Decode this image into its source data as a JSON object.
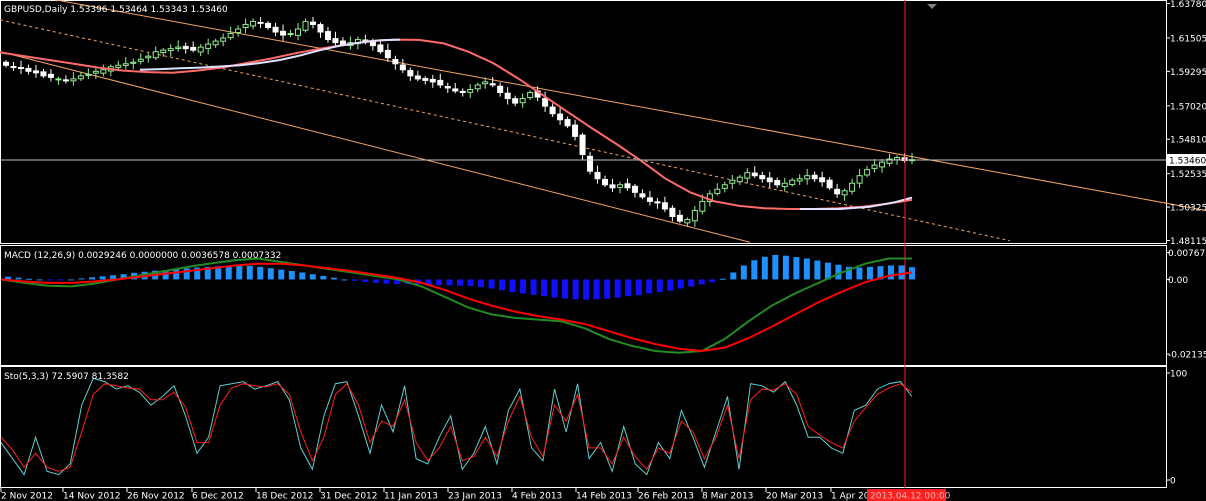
{
  "title": "GBPUSD,Daily  1.53396 1.53464 1.53343 1.53460",
  "macd_label": "MACD  (12,26,9) 0.0029246 0.0000000 0.0036578 0.0007332",
  "sto_label": "Sto(5,3,3) 72.5907 81.3582",
  "current_price_tag": "1.53460",
  "crosshair_time_tag": "2013.04.12 00:00",
  "colors": {
    "background": "#000000",
    "bull_candle": "#90ee90",
    "bear_candle": "#ffffff",
    "ma_red": "#ff6a6a",
    "ma_white": "#e0e0ff",
    "channel": "#f4a460",
    "crosshair": "#ff2020",
    "macd_hist_pos": "#1e90ff",
    "macd_hist_neg": "#1010ff",
    "macd_main": "#228b22",
    "macd_signal": "#ff0000",
    "sto_main": "#5fd0d0",
    "sto_signal": "#ff2020"
  },
  "chart_data": [
    {
      "type": "candlestick",
      "title": "GBPUSD,Daily",
      "y_ticks": [
        "1.63780",
        "1.61505",
        "1.59295",
        "1.57020",
        "1.54810",
        "1.52535",
        "1.50325",
        "1.48115"
      ],
      "ylim": [
        1.4795,
        1.6395
      ],
      "x_tick_labels": [
        "2 Nov 2012",
        "14 Nov 2012",
        "26 Nov 2012",
        "6 Dec 2012",
        "18 Dec 2012",
        "31 Dec 2012",
        "11 Jan 2013",
        "23 Jan 2013",
        "4 Feb 2013",
        "14 Feb 2013",
        "26 Feb 2013",
        "8 Mar 2013",
        "20 Mar 2013",
        "1 Apr 2013"
      ],
      "last_ohlc": {
        "open": 1.53396,
        "high": 1.53464,
        "low": 1.53343,
        "close": 1.5346
      },
      "close_path": [
        1.597,
        1.596,
        1.595,
        1.593,
        1.592,
        1.59,
        1.589,
        1.588,
        1.587,
        1.588,
        1.59,
        1.591,
        1.593,
        1.594,
        1.596,
        1.597,
        1.598,
        1.599,
        1.601,
        1.603,
        1.606,
        1.607,
        1.608,
        1.609,
        1.608,
        1.607,
        1.609,
        1.611,
        1.613,
        1.615,
        1.618,
        1.621,
        1.624,
        1.626,
        1.625,
        1.622,
        1.619,
        1.617,
        1.618,
        1.621,
        1.626,
        1.624,
        1.619,
        1.614,
        1.612,
        1.611,
        1.612,
        1.614,
        1.613,
        1.61,
        1.606,
        1.602,
        1.598,
        1.594,
        1.59,
        1.588,
        1.587,
        1.586,
        1.584,
        1.582,
        1.58,
        1.579,
        1.581,
        1.584,
        1.586,
        1.584,
        1.579,
        1.575,
        1.572,
        1.575,
        1.579,
        1.576,
        1.57,
        1.565,
        1.561,
        1.557,
        1.55,
        1.538,
        1.527,
        1.522,
        1.518,
        1.516,
        1.518,
        1.516,
        1.513,
        1.51,
        1.507,
        1.506,
        1.502,
        1.497,
        1.494,
        1.495,
        1.501,
        1.507,
        1.512,
        1.515,
        1.518,
        1.521,
        1.523,
        1.526,
        1.524,
        1.522,
        1.52,
        1.518,
        1.519,
        1.521,
        1.522,
        1.524,
        1.522,
        1.52,
        1.516,
        1.512,
        1.514,
        1.519,
        1.524,
        1.528,
        1.531,
        1.533,
        1.535,
        1.536,
        1.534,
        1.5346
      ],
      "ma_red": [
        1.6055,
        1.603,
        1.6005,
        1.598,
        1.5955,
        1.5935,
        1.5925,
        1.592,
        1.5935,
        1.5955,
        1.5985,
        1.6015,
        1.605,
        1.608,
        1.6105,
        1.613,
        1.614,
        1.6138,
        1.6115,
        1.606,
        1.5985,
        1.5885,
        1.5775,
        1.5665,
        1.5555,
        1.545,
        1.534,
        1.522,
        1.513,
        1.507,
        1.504,
        1.5025,
        1.502,
        1.502,
        1.5025,
        1.5035,
        1.5055,
        1.508
      ],
      "ma_white": [
        1.594,
        1.5945,
        1.595,
        1.5955,
        1.5962,
        1.597,
        1.5985,
        1.6005,
        1.6035,
        1.607,
        1.61,
        1.612,
        1.6135,
        1.614
      ],
      "channel_upper": [
        [
          0,
          1.647
        ],
        [
          1206,
          1.501
        ]
      ],
      "channel_middle": [
        [
          0,
          1.627
        ],
        [
          1010,
          1.481
        ]
      ],
      "channel_lower": [
        [
          0,
          1.606
        ],
        [
          750,
          1.48
        ]
      ]
    },
    {
      "type": "bar+line",
      "title": "MACD (12,26,9)",
      "y_ticks": [
        "0.007677",
        "0.00",
        "-0.021355"
      ],
      "ylim": [
        -0.0245,
        0.009
      ],
      "histogram": [
        0.0008,
        0.0005,
        0.0002,
        0.0,
        -0.0002,
        -0.0001,
        0.0,
        0.0003,
        0.0006,
        0.0009,
        0.0012,
        0.0015,
        0.0019,
        0.0022,
        0.0025,
        0.0027,
        0.0029,
        0.0032,
        0.0034,
        0.0036,
        0.0038,
        0.0039,
        0.004,
        0.0039,
        0.0036,
        0.0032,
        0.0028,
        0.0024,
        0.002,
        0.0015,
        0.001,
        0.0005,
        0.0,
        -0.0004,
        -0.0007,
        -0.001,
        -0.0012,
        -0.0013,
        -0.0013,
        -0.0014,
        -0.0015,
        -0.0016,
        -0.0017,
        -0.0018,
        -0.0019,
        -0.0022,
        -0.0026,
        -0.0031,
        -0.0036,
        -0.004,
        -0.0044,
        -0.0048,
        -0.0052,
        -0.0055,
        -0.0057,
        -0.0058,
        -0.0057,
        -0.0055,
        -0.0052,
        -0.0048,
        -0.0045,
        -0.004,
        -0.0036,
        -0.0032,
        -0.0026,
        -0.002,
        -0.0014,
        -0.0008,
        0.0002,
        0.002,
        0.004,
        0.0055,
        0.0065,
        0.007,
        0.0068,
        0.0064,
        0.006,
        0.0054,
        0.0048,
        0.0042,
        0.0036,
        0.0034,
        0.0036,
        0.0038,
        0.004,
        0.004,
        0.0035
      ],
      "macd_main": [
        0.0,
        -0.001,
        -0.0018,
        -0.002,
        -0.0012,
        0.0,
        0.0012,
        0.0024,
        0.0036,
        0.0046,
        0.0055,
        0.006,
        0.005,
        0.004,
        0.003,
        0.002,
        0.001,
        0.0,
        -0.002,
        -0.005,
        -0.008,
        -0.01,
        -0.011,
        -0.0115,
        -0.012,
        -0.014,
        -0.017,
        -0.019,
        -0.0205,
        -0.021,
        -0.0205,
        -0.017,
        -0.012,
        -0.0075,
        -0.004,
        -0.001,
        0.002,
        0.0045,
        0.006,
        0.006
      ],
      "macd_signal": [
        0.0,
        -0.0006,
        -0.001,
        -0.001,
        -0.0006,
        0.0,
        0.0008,
        0.0016,
        0.0024,
        0.0032,
        0.004,
        0.0045,
        0.0045,
        0.004,
        0.0032,
        0.0024,
        0.0014,
        0.0004,
        -0.001,
        -0.003,
        -0.0055,
        -0.0075,
        -0.0092,
        -0.0105,
        -0.0115,
        -0.0128,
        -0.0148,
        -0.0168,
        -0.0185,
        -0.0198,
        -0.0205,
        -0.0195,
        -0.0168,
        -0.0135,
        -0.01,
        -0.0065,
        -0.0035,
        -0.0008,
        0.001,
        0.002
      ]
    },
    {
      "type": "line",
      "title": "Sto(5,3,3)",
      "y_ticks": [
        "100",
        "0"
      ],
      "ylim": [
        0,
        100
      ],
      "sto_main": [
        35,
        20,
        5,
        40,
        8,
        5,
        15,
        70,
        95,
        92,
        85,
        88,
        82,
        70,
        78,
        88,
        60,
        25,
        40,
        88,
        90,
        92,
        85,
        88,
        92,
        75,
        30,
        10,
        60,
        90,
        92,
        60,
        25,
        70,
        45,
        88,
        20,
        15,
        40,
        60,
        10,
        25,
        50,
        15,
        65,
        85,
        30,
        18,
        85,
        45,
        90,
        20,
        35,
        8,
        50,
        15,
        5,
        35,
        20,
        65,
        40,
        12,
        45,
        78,
        10,
        90,
        88,
        82,
        92,
        70,
        40,
        40,
        30,
        25,
        65,
        70,
        85,
        90,
        92,
        78
      ],
      "sto_signal": [
        40,
        28,
        12,
        25,
        12,
        8,
        12,
        45,
        80,
        90,
        88,
        86,
        85,
        75,
        75,
        82,
        68,
        35,
        35,
        70,
        86,
        90,
        88,
        87,
        90,
        80,
        45,
        18,
        40,
        80,
        90,
        70,
        35,
        55,
        50,
        75,
        35,
        18,
        30,
        50,
        18,
        22,
        40,
        22,
        55,
        78,
        40,
        22,
        70,
        55,
        80,
        30,
        30,
        15,
        40,
        22,
        10,
        30,
        25,
        55,
        45,
        20,
        40,
        70,
        20,
        75,
        85,
        84,
        90,
        80,
        50,
        42,
        35,
        30,
        55,
        68,
        80,
        86,
        90,
        82
      ]
    }
  ]
}
